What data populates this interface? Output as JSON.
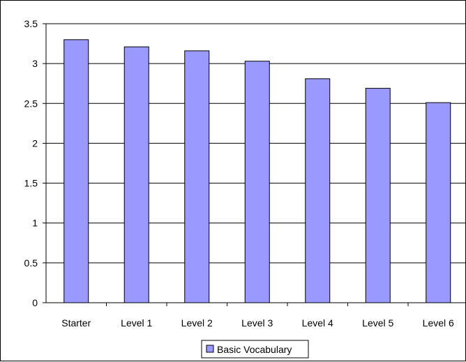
{
  "chart_data": {
    "type": "bar",
    "title": "",
    "xlabel": "",
    "ylabel": "",
    "categories": [
      "Starter",
      "Level 1",
      "Level 2",
      "Level 3",
      "Level 4",
      "Level 5",
      "Level 6"
    ],
    "series": [
      {
        "name": "Basic Vocabulary",
        "values": [
          3.3,
          3.21,
          3.16,
          3.03,
          2.81,
          2.69,
          2.51
        ],
        "color": "#9999ff"
      }
    ],
    "ylim": [
      0,
      3.5
    ],
    "yticks": [
      "0",
      "0.5",
      "1",
      "1.5",
      "2",
      "2.5",
      "3",
      "3.5"
    ],
    "grid": true,
    "legend_position": "bottom"
  }
}
